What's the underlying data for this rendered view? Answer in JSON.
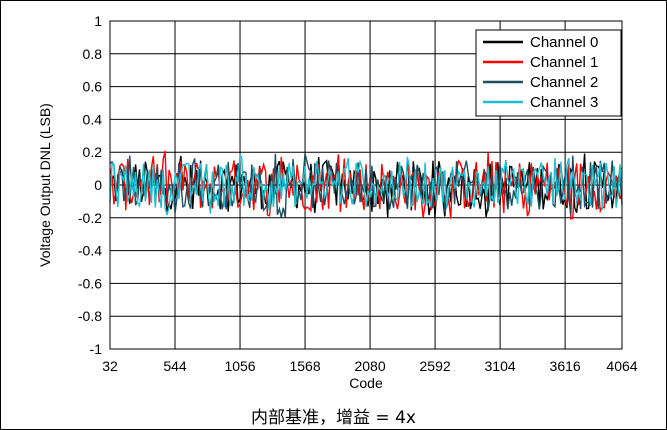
{
  "caption": "内部基准，增益 = 4x",
  "chart_data": {
    "type": "line",
    "title": "",
    "xlabel": "Code",
    "ylabel": "Voltage Output DNL (LSB)",
    "xlim": [
      32,
      4064
    ],
    "ylim": [
      -1,
      1
    ],
    "xticks": [
      32,
      544,
      1056,
      1568,
      2080,
      2592,
      3104,
      3616,
      4064
    ],
    "yticks": [
      1,
      0.8,
      0.6,
      0.4,
      0.2,
      0,
      -0.2,
      -0.4,
      -0.6,
      -0.8,
      -1
    ],
    "ytick_labels": [
      "1",
      "0.8",
      "0.6",
      "0.4",
      "0.2",
      "0",
      "-0.2",
      "-0.4",
      "-0.6",
      "-0.8",
      "-1"
    ],
    "grid": true,
    "legend_position": "top-right",
    "data_band": {
      "upper": 0.15,
      "lower": -0.15,
      "max_peak": 0.2,
      "min_peak": -0.22
    },
    "series": [
      {
        "name": "Channel 0",
        "color": "#000000",
        "amplitude": 0.15
      },
      {
        "name": "Channel 1",
        "color": "#ff0000",
        "amplitude": 0.16
      },
      {
        "name": "Channel 2",
        "color": "#1f4e5f",
        "amplitude": 0.15
      },
      {
        "name": "Channel 3",
        "color": "#1ec0d0",
        "amplitude": 0.14
      }
    ]
  }
}
